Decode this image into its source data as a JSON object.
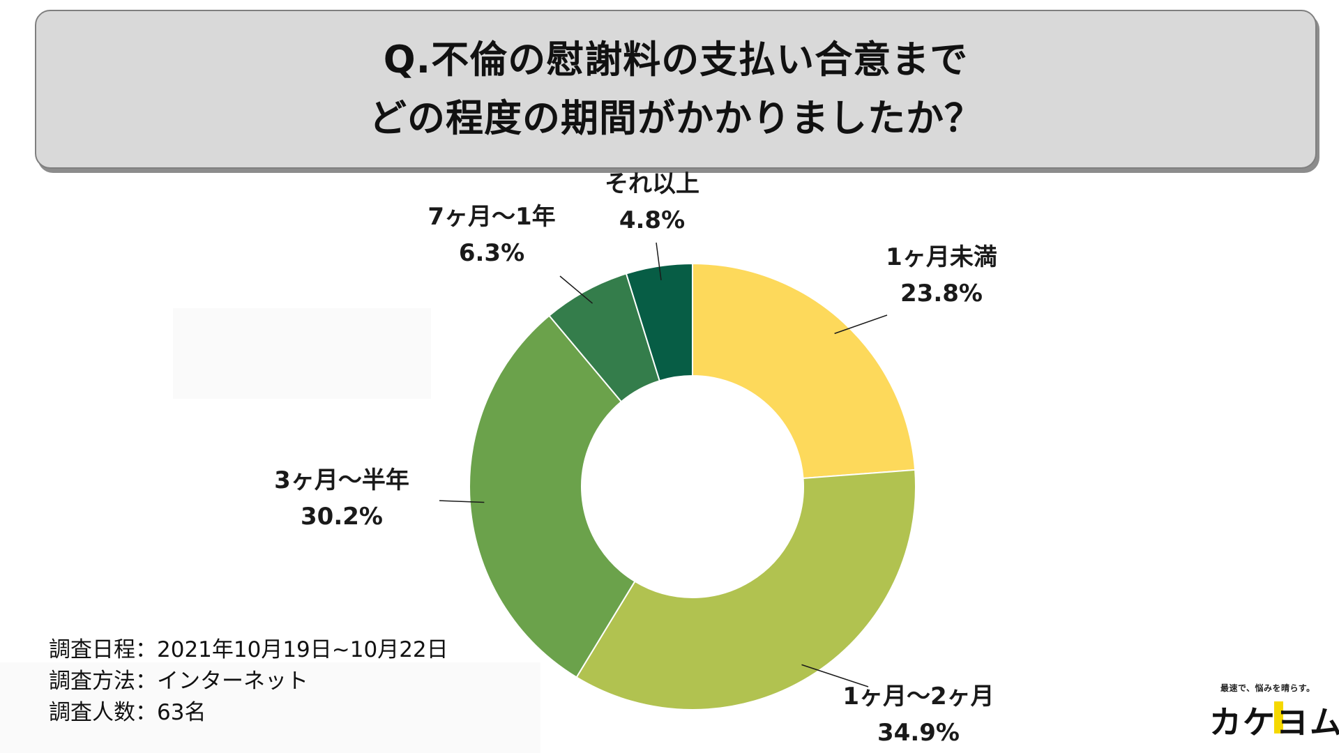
{
  "title": {
    "line1": "Q.不倫の慰謝料の支払い合意まで",
    "line2": "どの程度の期間がかかりましたか？"
  },
  "chart_data": {
    "type": "donut",
    "title": "Q.不倫の慰謝料の支払い合意まで どの程度の期間がかかりましたか？",
    "unit": "%",
    "slices": [
      {
        "label": "1ヶ月未満",
        "value": 23.8,
        "value_label": "23.8%",
        "color": "#fdd95b"
      },
      {
        "label": "1ヶ月〜2ヶ月",
        "value": 34.9,
        "value_label": "34.9%",
        "color": "#b1c250"
      },
      {
        "label": "3ヶ月〜半年",
        "value": 30.2,
        "value_label": "30.2%",
        "color": "#6ba24b"
      },
      {
        "label": "7ヶ月〜1年",
        "value": 6.3,
        "value_label": "6.3%",
        "color": "#347d4b"
      },
      {
        "label": "それ以上",
        "value": 4.8,
        "value_label": "4.8%",
        "color": "#075d45"
      }
    ]
  },
  "survey": {
    "date": "調査日程：2021年10月19日~10月22日",
    "method": "調査方法：インターネット",
    "count": "調査人数：63名"
  },
  "brand": {
    "tagline": "最速で、悩みを晴らす。",
    "logo": "カケヨム"
  }
}
